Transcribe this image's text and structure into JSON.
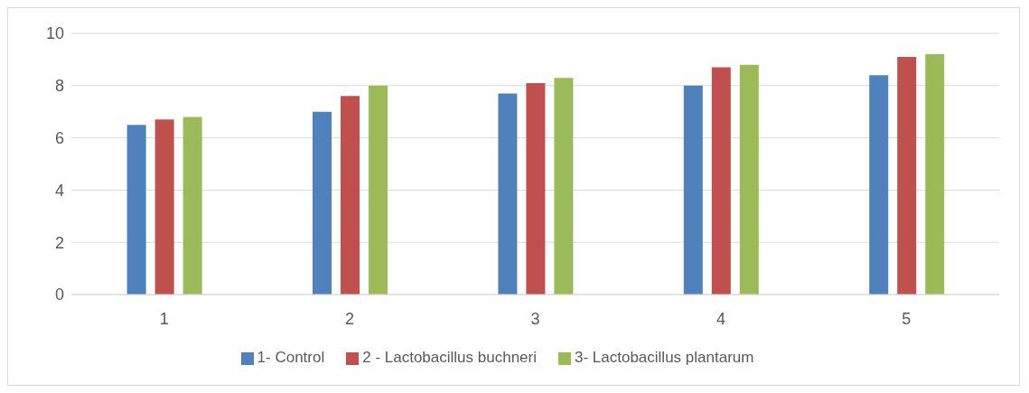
{
  "chart_data": {
    "type": "bar",
    "categories": [
      "1",
      "2",
      "3",
      "4",
      "5"
    ],
    "series": [
      {
        "name": "1- Control",
        "color": "#4f81bd",
        "values": [
          6.5,
          7.0,
          7.7,
          8.0,
          8.4
        ]
      },
      {
        "name": "2 - Lactobacillus buchneri",
        "color": "#c0504d",
        "values": [
          6.7,
          7.6,
          8.1,
          8.7,
          9.1
        ]
      },
      {
        "name": "3- Lactobacillus plantarum",
        "color": "#9bbb59",
        "values": [
          6.8,
          8.0,
          8.3,
          8.8,
          9.2
        ]
      }
    ],
    "ylim": [
      0,
      10
    ],
    "yticks": [
      0,
      2,
      4,
      6,
      8,
      10
    ],
    "grid": "y",
    "legend": "bottom"
  }
}
